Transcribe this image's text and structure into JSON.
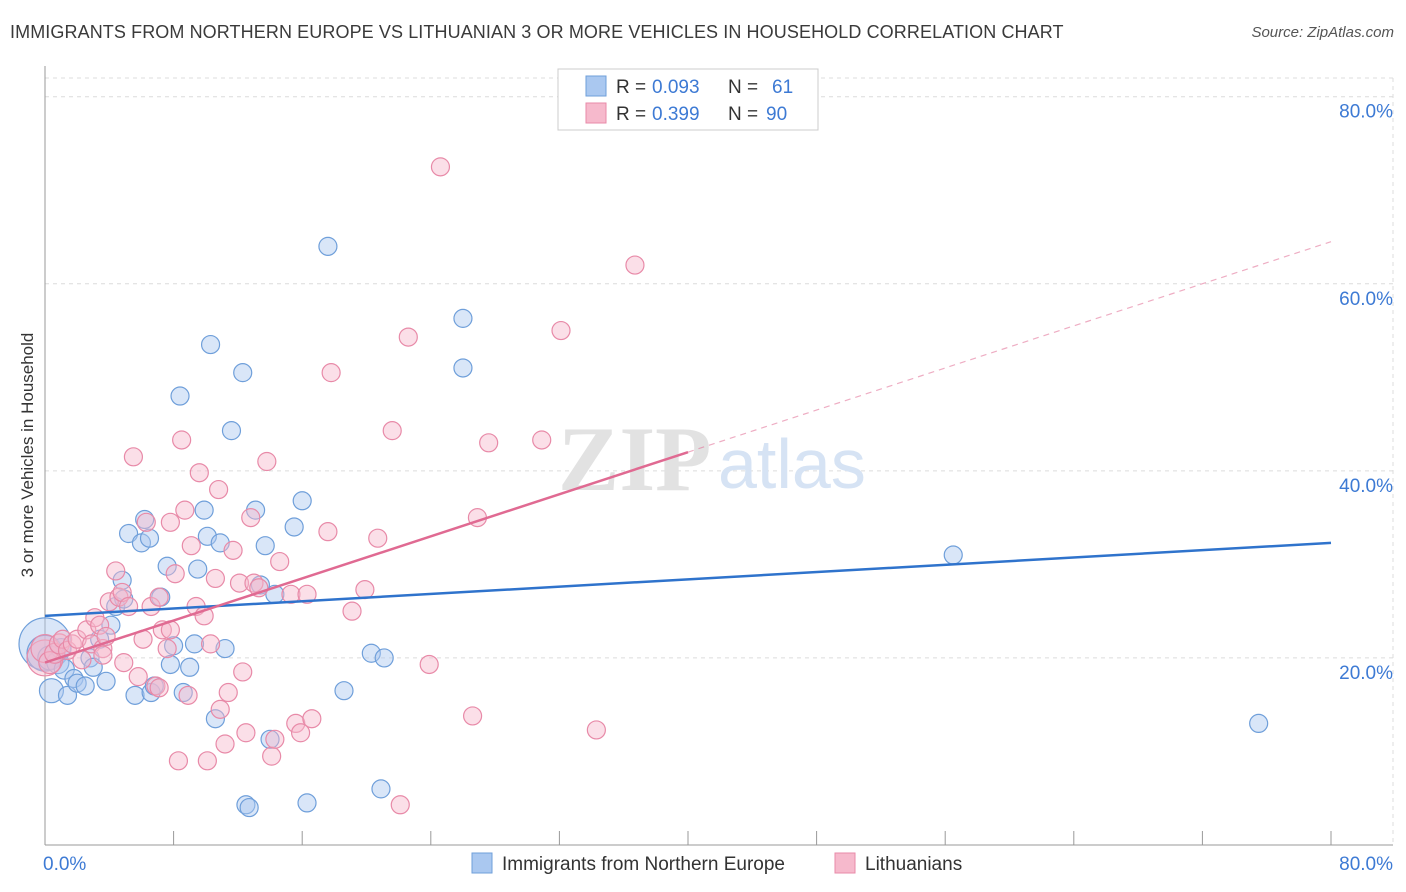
{
  "title": "IMMIGRANTS FROM NORTHERN EUROPE VS LITHUANIAN 3 OR MORE VEHICLES IN HOUSEHOLD CORRELATION CHART",
  "source": "Source: ZipAtlas.com",
  "watermark": {
    "zip": "ZIP",
    "atlas": "atlas"
  },
  "legend": {
    "rows": [
      {
        "r_label": "R =",
        "r_value": "0.093",
        "n_label": "N =",
        "n_value": "61",
        "series": "blue"
      },
      {
        "r_label": "R =",
        "r_value": "0.399",
        "n_label": "N =",
        "n_value": "90",
        "series": "pink"
      }
    ]
  },
  "colors": {
    "blue_fill": "#aac8f0",
    "blue_stroke": "#6f9fda",
    "blue_line": "#2f73cc",
    "pink_fill": "#f6b9cc",
    "pink_stroke": "#e88aa8",
    "pink_line": "#e06a92",
    "value_text": "#3d7ad4",
    "grid": "#dcdcdc"
  },
  "chart_data": {
    "type": "scatter",
    "title": "IMMIGRANTS FROM NORTHERN EUROPE VS LITHUANIAN 3 OR MORE VEHICLES IN HOUSEHOLD CORRELATION CHART",
    "xlabel": "",
    "ylabel": "3 or more Vehicles in Household",
    "xlim": [
      0,
      80
    ],
    "ylim": [
      0,
      82
    ],
    "x_ticks": [
      0,
      8,
      16,
      24,
      32,
      40,
      48,
      56,
      64,
      72,
      80
    ],
    "x_tick_labels": [
      {
        "value": 0,
        "label": "0.0%"
      },
      {
        "value": 80,
        "label": "80.0%"
      }
    ],
    "y_ticks": [
      {
        "value": 20,
        "label": "20.0%"
      },
      {
        "value": 40,
        "label": "40.0%"
      },
      {
        "value": 60,
        "label": "60.0%"
      },
      {
        "value": 80,
        "label": "80.0%"
      }
    ],
    "series": [
      {
        "name": "Immigrants from Northern Europe",
        "color_key": "blue",
        "R": 0.093,
        "N": 61,
        "trend": {
          "x": [
            0,
            80
          ],
          "y": [
            24.5,
            32.3
          ],
          "style": "solid"
        },
        "points": [
          [
            0.0,
            21.5,
            26
          ],
          [
            0.0,
            20.5,
            18
          ],
          [
            0.3,
            20.0,
            12
          ],
          [
            0.4,
            16.5,
            12
          ],
          [
            0.8,
            19.5,
            11
          ],
          [
            1.0,
            21.0,
            10
          ],
          [
            1.2,
            18.8,
            10
          ],
          [
            1.4,
            16.0,
            9
          ],
          [
            1.8,
            17.8,
            9
          ],
          [
            2.0,
            17.3,
            9
          ],
          [
            2.5,
            17.0,
            9
          ],
          [
            2.8,
            20.0,
            9
          ],
          [
            3.0,
            19.0,
            9
          ],
          [
            3.4,
            22.0,
            9
          ],
          [
            3.8,
            17.5,
            9
          ],
          [
            4.1,
            23.5,
            9
          ],
          [
            4.4,
            25.5,
            9
          ],
          [
            4.8,
            28.3,
            9
          ],
          [
            4.9,
            26.3,
            9
          ],
          [
            5.2,
            33.3,
            9
          ],
          [
            5.6,
            16.0,
            9
          ],
          [
            6.0,
            32.3,
            9
          ],
          [
            6.2,
            34.8,
            9
          ],
          [
            6.5,
            32.8,
            9
          ],
          [
            6.6,
            16.3,
            9
          ],
          [
            6.8,
            17.0,
            9
          ],
          [
            7.2,
            26.5,
            9
          ],
          [
            7.6,
            29.8,
            9
          ],
          [
            7.8,
            19.3,
            9
          ],
          [
            8.0,
            21.3,
            9
          ],
          [
            8.4,
            48.0,
            9
          ],
          [
            8.6,
            16.3,
            9
          ],
          [
            9.0,
            19.0,
            9
          ],
          [
            9.3,
            21.5,
            9
          ],
          [
            9.5,
            29.5,
            9
          ],
          [
            9.9,
            35.8,
            9
          ],
          [
            10.1,
            33.0,
            9
          ],
          [
            10.3,
            53.5,
            9
          ],
          [
            10.6,
            13.5,
            9
          ],
          [
            10.9,
            32.3,
            9
          ],
          [
            11.2,
            21.0,
            9
          ],
          [
            11.6,
            44.3,
            9
          ],
          [
            12.3,
            50.5,
            9
          ],
          [
            12.5,
            4.3,
            9
          ],
          [
            12.7,
            4.0,
            9
          ],
          [
            13.1,
            35.8,
            9
          ],
          [
            13.4,
            27.8,
            9
          ],
          [
            13.7,
            32.0,
            9
          ],
          [
            14.0,
            11.3,
            9
          ],
          [
            14.3,
            26.8,
            9
          ],
          [
            15.5,
            34.0,
            9
          ],
          [
            16.0,
            36.8,
            9
          ],
          [
            16.3,
            4.5,
            9
          ],
          [
            17.6,
            64.0,
            9
          ],
          [
            18.6,
            16.5,
            9
          ],
          [
            20.3,
            20.5,
            9
          ],
          [
            21.1,
            20.0,
            9
          ],
          [
            20.9,
            6.0,
            9
          ],
          [
            26.0,
            56.3,
            9
          ],
          [
            26.0,
            51.0,
            9
          ],
          [
            56.5,
            31.0,
            9
          ],
          [
            75.5,
            13.0,
            9
          ]
        ]
      },
      {
        "name": "Lithuanians",
        "color_key": "pink",
        "R": 0.399,
        "N": 90,
        "trend": {
          "x": [
            0,
            40
          ],
          "y": [
            19.5,
            42.0
          ],
          "style": "solid",
          "extended": {
            "x": [
              40,
              80
            ],
            "y": [
              42.0,
              64.5
            ],
            "style": "dashed"
          }
        },
        "points": [
          [
            0.0,
            20.0,
            18
          ],
          [
            0.0,
            21.0,
            14
          ],
          [
            0.3,
            19.5,
            11
          ],
          [
            0.6,
            20.5,
            10
          ],
          [
            0.9,
            21.5,
            10
          ],
          [
            1.1,
            22.0,
            9
          ],
          [
            1.4,
            20.8,
            9
          ],
          [
            1.7,
            21.5,
            9
          ],
          [
            2.0,
            22.0,
            9
          ],
          [
            2.3,
            19.8,
            9
          ],
          [
            2.6,
            23.0,
            9
          ],
          [
            2.9,
            21.5,
            9
          ],
          [
            3.1,
            24.3,
            9
          ],
          [
            3.4,
            23.5,
            9
          ],
          [
            3.6,
            21.0,
            9
          ],
          [
            3.6,
            20.3,
            9
          ],
          [
            3.8,
            22.3,
            9
          ],
          [
            4.0,
            26.0,
            9
          ],
          [
            4.4,
            29.3,
            9
          ],
          [
            4.6,
            26.5,
            9
          ],
          [
            4.8,
            27.0,
            9
          ],
          [
            4.9,
            19.5,
            9
          ],
          [
            5.2,
            25.5,
            9
          ],
          [
            5.5,
            41.5,
            9
          ],
          [
            5.8,
            18.0,
            9
          ],
          [
            6.1,
            22.0,
            9
          ],
          [
            6.3,
            34.5,
            9
          ],
          [
            6.6,
            25.5,
            9
          ],
          [
            6.9,
            17.0,
            9
          ],
          [
            7.1,
            26.5,
            9
          ],
          [
            7.1,
            16.8,
            9
          ],
          [
            7.3,
            23.0,
            9
          ],
          [
            7.6,
            21.0,
            9
          ],
          [
            7.8,
            34.5,
            9
          ],
          [
            7.8,
            23.0,
            9
          ],
          [
            8.1,
            29.0,
            9
          ],
          [
            8.3,
            9.0,
            9
          ],
          [
            8.5,
            43.3,
            9
          ],
          [
            8.7,
            35.8,
            9
          ],
          [
            8.9,
            16.0,
            9
          ],
          [
            9.1,
            32.0,
            9
          ],
          [
            9.4,
            25.5,
            9
          ],
          [
            9.6,
            39.8,
            9
          ],
          [
            9.9,
            24.5,
            9
          ],
          [
            10.1,
            9.0,
            9
          ],
          [
            10.3,
            21.5,
            9
          ],
          [
            10.6,
            28.5,
            9
          ],
          [
            10.8,
            38.0,
            9
          ],
          [
            10.9,
            14.5,
            9
          ],
          [
            11.2,
            10.8,
            9
          ],
          [
            11.4,
            16.3,
            9
          ],
          [
            11.7,
            31.5,
            9
          ],
          [
            12.1,
            28.0,
            9
          ],
          [
            12.3,
            18.5,
            9
          ],
          [
            12.5,
            12.0,
            9
          ],
          [
            12.8,
            35.0,
            9
          ],
          [
            13.0,
            28.0,
            9
          ],
          [
            13.3,
            27.5,
            9
          ],
          [
            13.8,
            41.0,
            9
          ],
          [
            14.1,
            9.5,
            9
          ],
          [
            14.3,
            11.3,
            9
          ],
          [
            14.6,
            30.3,
            9
          ],
          [
            15.3,
            26.8,
            9
          ],
          [
            15.6,
            13.0,
            9
          ],
          [
            15.9,
            12.0,
            9
          ],
          [
            16.3,
            26.8,
            9
          ],
          [
            16.6,
            13.5,
            9
          ],
          [
            17.6,
            33.5,
            9
          ],
          [
            17.8,
            50.5,
            9
          ],
          [
            19.1,
            25.0,
            9
          ],
          [
            19.9,
            27.3,
            9
          ],
          [
            20.7,
            32.8,
            9
          ],
          [
            21.6,
            44.3,
            9
          ],
          [
            22.1,
            4.3,
            9
          ],
          [
            22.6,
            54.3,
            9
          ],
          [
            23.9,
            19.3,
            9
          ],
          [
            24.6,
            72.5,
            9
          ],
          [
            26.6,
            13.8,
            9
          ],
          [
            26.9,
            35.0,
            9
          ],
          [
            27.6,
            43.0,
            9
          ],
          [
            30.9,
            43.3,
            9
          ],
          [
            32.1,
            55.0,
            9
          ],
          [
            34.3,
            12.3,
            9
          ],
          [
            36.7,
            62.0,
            9
          ]
        ]
      }
    ],
    "legend_position": "top-center",
    "bottom_legend": [
      "Immigrants from Northern Europe",
      "Lithuanians"
    ]
  }
}
